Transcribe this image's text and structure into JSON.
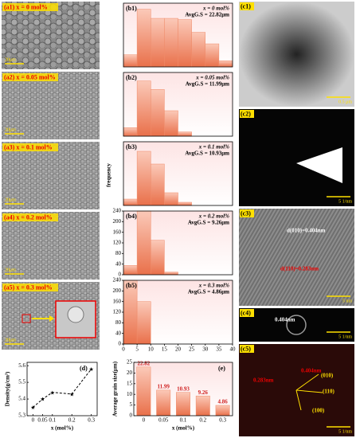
{
  "chart_data": [
    {
      "type": "histogram",
      "label": "(b1)",
      "legend": [
        "x = 0 mol%",
        "AvgG.S = 22.82μm"
      ],
      "bins": [
        0,
        5,
        10,
        15,
        20,
        25,
        30,
        35,
        40
      ],
      "counts": [
        20,
        95,
        80,
        80,
        78,
        57,
        38,
        10
      ],
      "color": "#ef8a68",
      "xlim": [
        0,
        40
      ],
      "ylim": [
        0,
        105
      ]
    },
    {
      "type": "histogram",
      "label": "(b2)",
      "legend": [
        "x = 0.05 mol%",
        "AvgG.S = 11.99μm"
      ],
      "bins": [
        0,
        5,
        10,
        15,
        20,
        25
      ],
      "counts": [
        20,
        130,
        110,
        60,
        10
      ],
      "color": "#ef8a68",
      "xlim": [
        0,
        40
      ],
      "ylim": [
        0,
        150
      ]
    },
    {
      "type": "histogram",
      "label": "(b3)",
      "legend": [
        "x = 0.1 mol%",
        "AvgG.S = 10.93μm"
      ],
      "bins": [
        0,
        5,
        10,
        15,
        20,
        25
      ],
      "counts": [
        20,
        170,
        130,
        40,
        10
      ],
      "color": "#ef8a68",
      "xlim": [
        0,
        40
      ],
      "ylim": [
        0,
        200
      ],
      "ylabel": "frequency"
    },
    {
      "type": "histogram",
      "label": "(b4)",
      "legend": [
        "x = 0.2 mol%",
        "AvgG.S = 9.26μm"
      ],
      "bins": [
        0,
        5,
        10,
        15,
        20
      ],
      "counts": [
        35,
        240,
        130,
        10
      ],
      "color": "#ef8a68",
      "xlim": [
        0,
        40
      ],
      "ylim": [
        0,
        240
      ],
      "yticks": [
        0,
        40,
        80,
        120,
        160,
        200,
        240
      ]
    },
    {
      "type": "histogram",
      "label": "(b5)",
      "legend": [
        "x = 0.3 mol%",
        "AvgG.S = 4.86μm"
      ],
      "bins": [
        0,
        5,
        10
      ],
      "counts": [
        240,
        160
      ],
      "color": "#ef8a68",
      "xlim": [
        0,
        40
      ],
      "ylim": [
        0,
        240
      ],
      "yticks": [
        0,
        40,
        80,
        120,
        160,
        200,
        240
      ],
      "xticks": [
        0,
        5,
        10,
        15,
        20,
        25,
        30,
        35,
        40
      ]
    },
    {
      "type": "line",
      "label": "(d)",
      "x": [
        0,
        0.05,
        0.1,
        0.2,
        0.3
      ],
      "values": [
        5.35,
        5.4,
        5.44,
        5.43,
        5.58
      ],
      "color": "#000000",
      "xlim": [
        -0.03,
        0.33
      ],
      "ylim": [
        5.3,
        5.62
      ],
      "xticks": [
        0,
        0.05,
        0.1,
        0.2,
        0.3
      ],
      "yticks": [
        5.3,
        5.4,
        5.5,
        5.6
      ],
      "xlabel": "x (mol%)",
      "ylabel": "Density(g/cm³)"
    },
    {
      "type": "bar",
      "label": "(e)",
      "categories": [
        "0",
        "0.05",
        "0.1",
        "0.2",
        "0.3"
      ],
      "values": [
        22.82,
        11.99,
        10.93,
        9.26,
        4.86
      ],
      "color": "#ef8a68",
      "ylim": [
        0,
        25
      ],
      "yticks": [
        0,
        5,
        10,
        15,
        20,
        25
      ],
      "xlabel": "x (mol%)",
      "ylabel": "Average grain size(μm)"
    }
  ],
  "sem": [
    {
      "label": "(a1) x = 0 mol%",
      "scale": "20μm"
    },
    {
      "label": "(a2) x = 0.05 mol%",
      "scale": "20μm"
    },
    {
      "label": "(a3) x = 0.1 mol%",
      "scale": "20μm"
    },
    {
      "label": "(a4) x = 0.2 mol%",
      "scale": "20μm"
    },
    {
      "label": "(a5) x = 0.3 mol%",
      "scale": "20μm",
      "inset": "enlarge"
    }
  ],
  "tem": [
    {
      "label": "(c1)",
      "scale": "0.5 μm"
    },
    {
      "label": "(c2)",
      "scale": "5 1/nm"
    },
    {
      "label": "(c3)",
      "scale": "5 nm",
      "notes": [
        "d(010)=0.404nm",
        "d(110)=0.283nm"
      ]
    },
    {
      "label": "(c4)",
      "scale": "5 1/nm",
      "notes": [
        "0.404nm"
      ]
    },
    {
      "label": "(c5)",
      "scale": "5 1/nm",
      "notes": [
        "(010)",
        "(110)",
        "(100)",
        "0.283nm",
        "0.404nm"
      ]
    }
  ]
}
